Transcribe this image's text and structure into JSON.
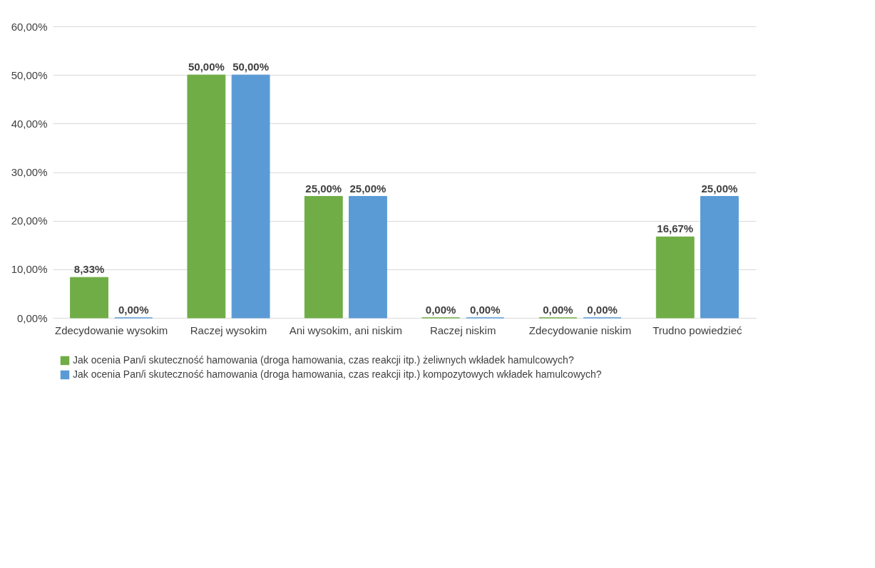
{
  "chart_data": {
    "type": "bar",
    "categories": [
      "Zdecydowanie wysokim",
      "Raczej wysokim",
      "Ani wysokim, ani niskim",
      "Raczej niskim",
      "Zdecydowanie niskim",
      "Trudno powiedzieć"
    ],
    "series": [
      {
        "name": "Jak ocenia Pan/i skuteczność hamowania (droga hamowania, czas reakcji itp.) żeliwnych wkładek hamulcowych?",
        "color": "#70ad47",
        "values": [
          8.33,
          50,
          25,
          0,
          0,
          16.67
        ],
        "value_labels": [
          "8,33%",
          "50,00%",
          "25,00%",
          "0,00%",
          "0,00%",
          "16,67%"
        ]
      },
      {
        "name": "Jak ocenia Pan/i skuteczność hamowania (droga hamowania, czas reakcji itp.) kompozytowych wkładek hamulcowych?",
        "color": "#5b9bd5",
        "values": [
          0,
          50,
          25,
          0,
          0,
          25
        ],
        "value_labels": [
          "0,00%",
          "50,00%",
          "25,00%",
          "0,00%",
          "0,00%",
          "25,00%"
        ]
      }
    ],
    "ylim": [
      0,
      60
    ],
    "yticks": [
      {
        "value": 0,
        "label": "0,00%"
      },
      {
        "value": 10,
        "label": "10,00%"
      },
      {
        "value": 20,
        "label": "20,00%"
      },
      {
        "value": 30,
        "label": "30,00%"
      },
      {
        "value": 40,
        "label": "40,00%"
      },
      {
        "value": 50,
        "label": "50,00%"
      },
      {
        "value": 60,
        "label": "60,00%"
      }
    ],
    "grid": "y",
    "legend": "bottom"
  }
}
